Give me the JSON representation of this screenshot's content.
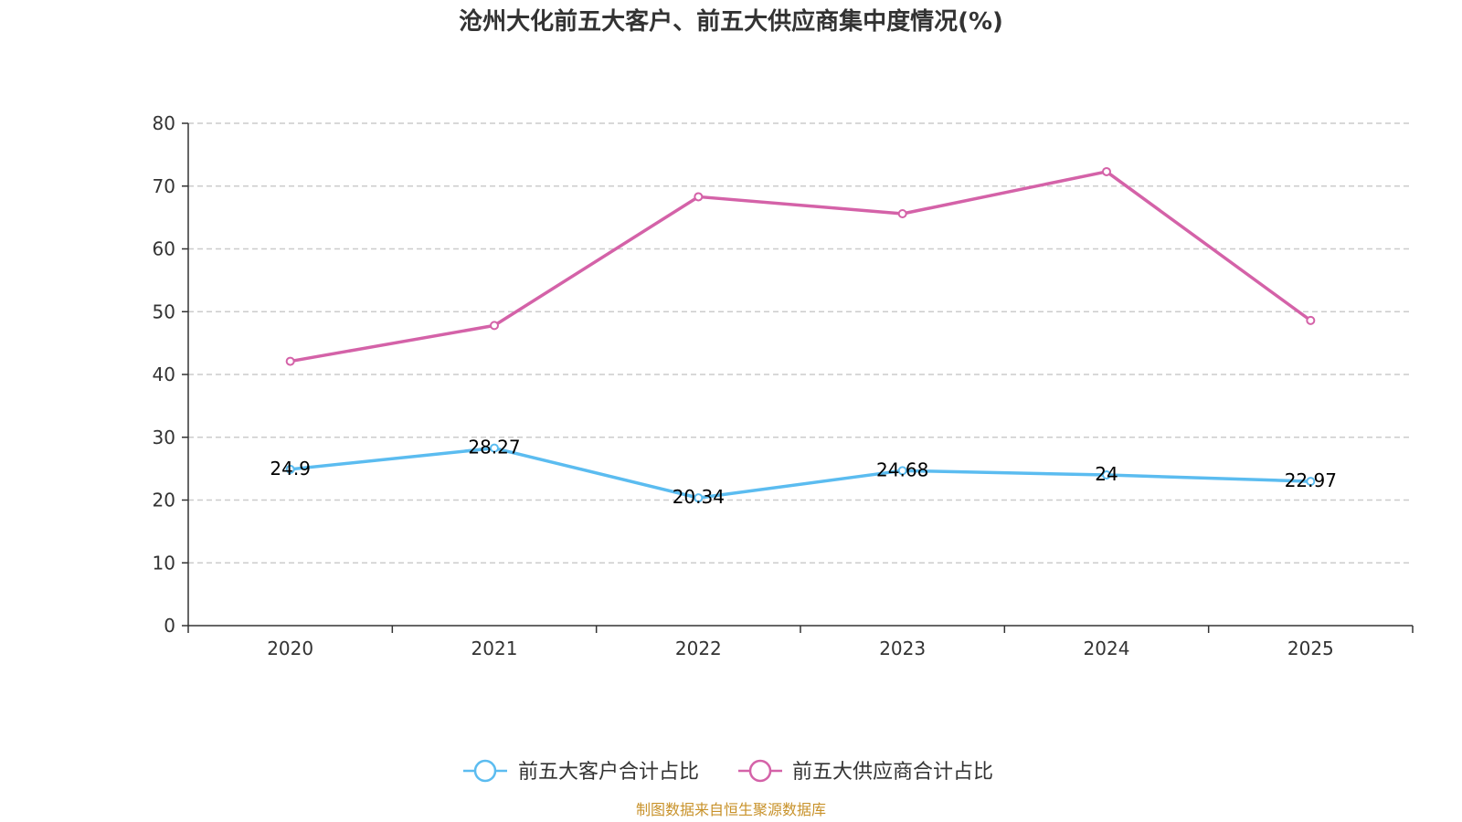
{
  "chart_data": {
    "type": "line",
    "title": "沧州大化前五大客户、前五大供应商集中度情况(%)",
    "categories": [
      "2020",
      "2021",
      "2022",
      "2023",
      "2024",
      "2025"
    ],
    "ylim": [
      0,
      80
    ],
    "yticks": [
      0,
      10,
      20,
      30,
      40,
      50,
      60,
      70,
      80
    ],
    "grid": true,
    "legend_position": "bottom-center",
    "series": [
      {
        "name": "前五大客户合计占比",
        "color": "#5bbcf0",
        "values": [
          24.9,
          28.27,
          20.34,
          24.68,
          24,
          22.97
        ],
        "labels": [
          "24.9",
          "28.27",
          "20.34",
          "24.68",
          "24",
          "22.97"
        ],
        "show_labels": true
      },
      {
        "name": "前五大供应商合计占比",
        "color": "#d462a8",
        "values": [
          42.1,
          47.8,
          68.3,
          65.6,
          72.3,
          48.6
        ],
        "show_labels": false
      }
    ]
  },
  "source_note": "制图数据来自恒生聚源数据库",
  "source_color": "#c8922a"
}
